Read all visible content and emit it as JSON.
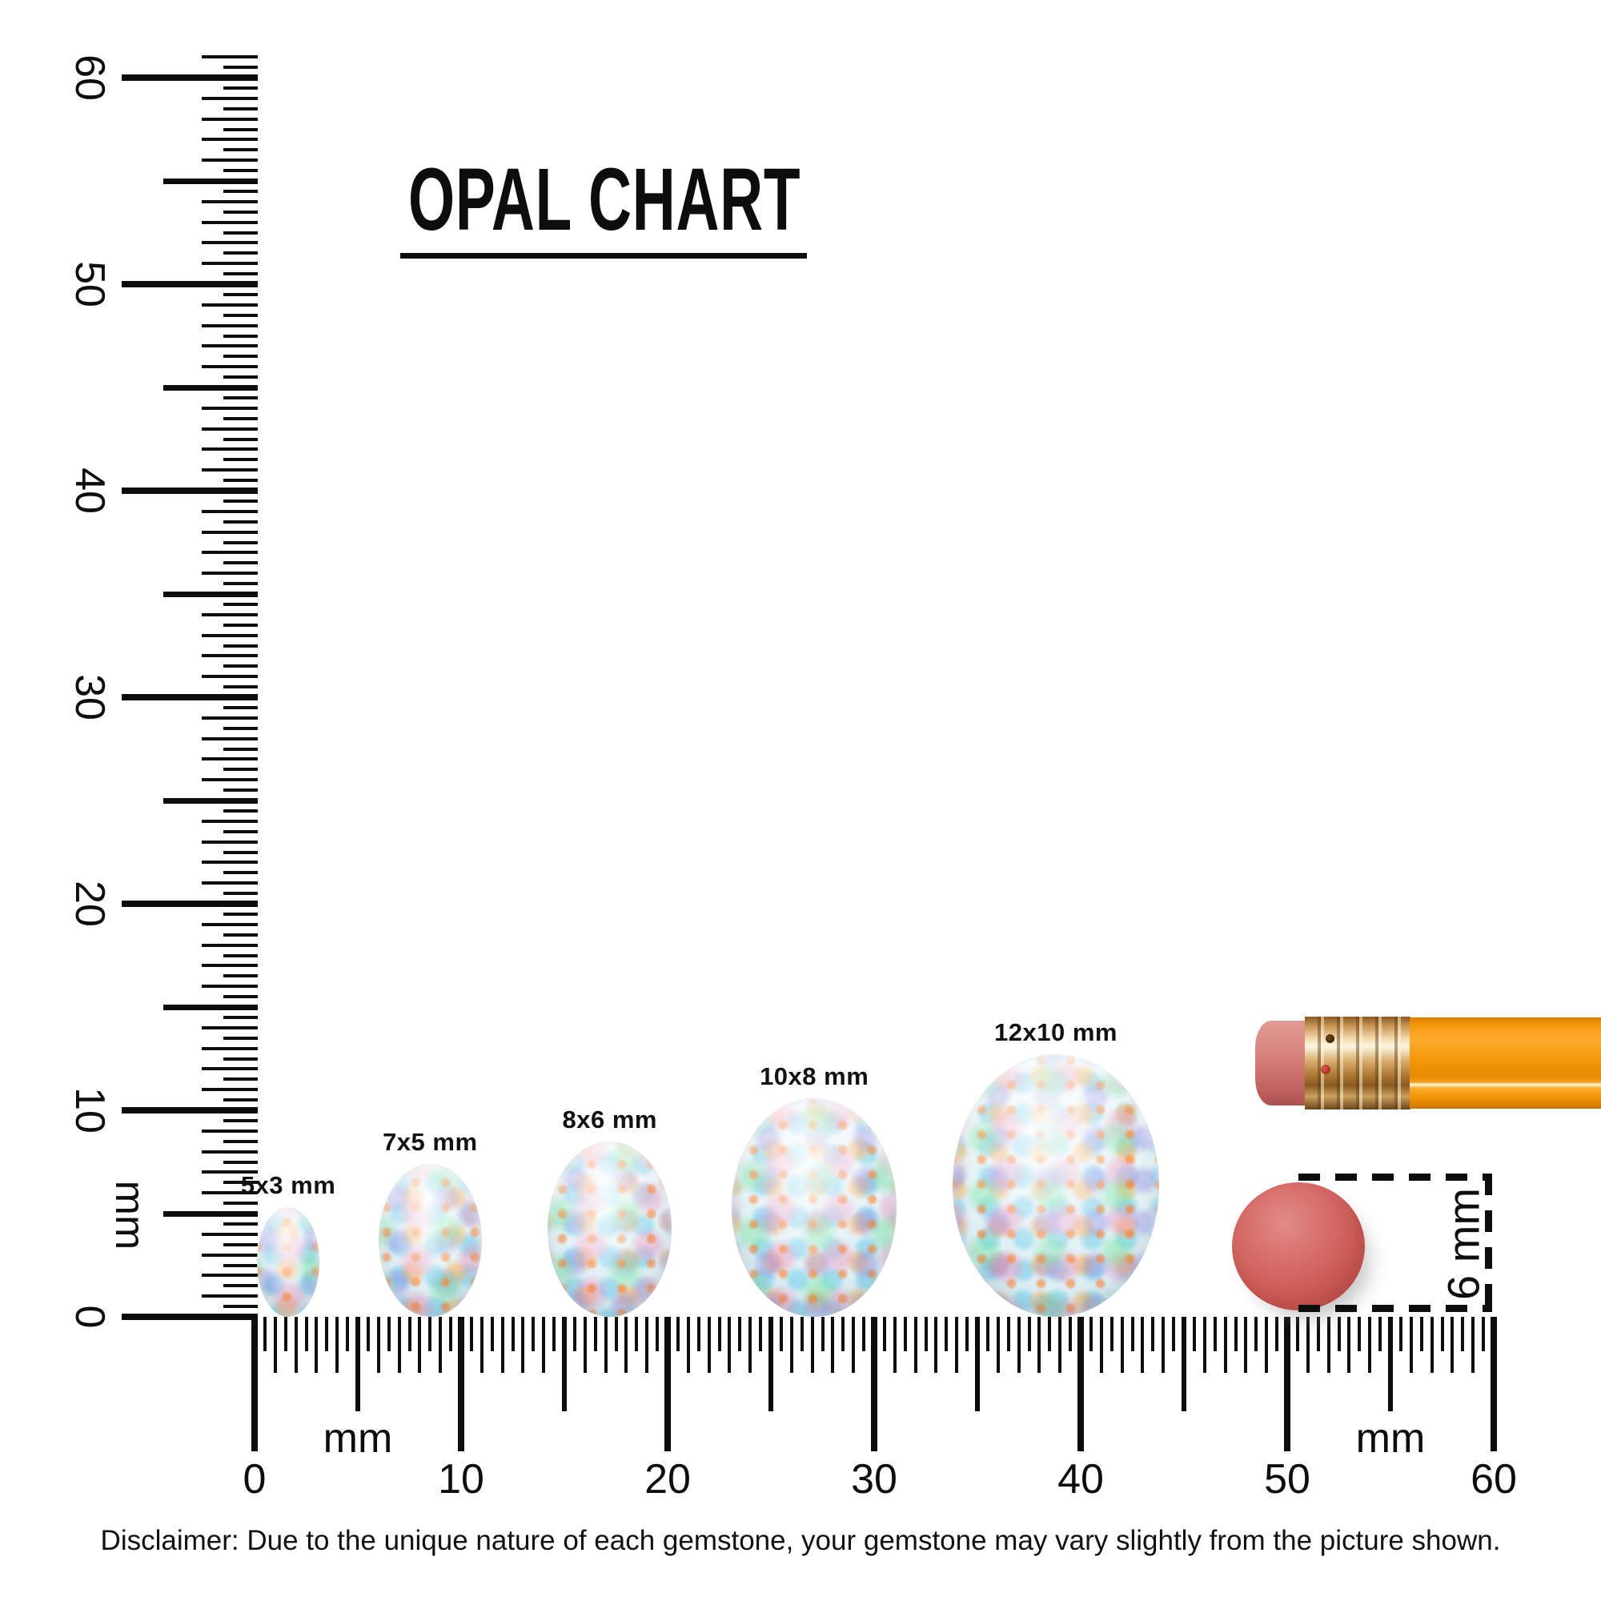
{
  "title": "OPAL CHART",
  "rulers": {
    "unit_label": "mm",
    "vertical": {
      "min_mm": 0,
      "max_mm": 61,
      "major_labels": [
        "0",
        "10",
        "20",
        "30",
        "40",
        "50",
        "60"
      ]
    },
    "horizontal": {
      "min_mm": 0,
      "max_mm": 60,
      "major_labels": [
        "0",
        "10",
        "20",
        "30",
        "40",
        "50",
        "60"
      ]
    }
  },
  "opals": [
    {
      "label": "5x3 mm",
      "width_mm": 3,
      "height_mm": 5,
      "center_mm": 1.63
    },
    {
      "label": "7x5 mm",
      "width_mm": 5,
      "height_mm": 7,
      "center_mm": 8.5
    },
    {
      "label": "8x6 mm",
      "width_mm": 6,
      "height_mm": 8,
      "center_mm": 17.2
    },
    {
      "label": "10x8 mm",
      "width_mm": 8,
      "height_mm": 10,
      "center_mm": 27.1
    },
    {
      "label": "12x10 mm",
      "width_mm": 10,
      "height_mm": 12,
      "center_mm": 38.8
    }
  ],
  "comparison": {
    "eraser_dot_label": "6 mm"
  },
  "disclaimer": "Disclaimer: Due to the unique nature of each gemstone, your gemstone may vary slightly from the picture shown.",
  "colors": {
    "ink": "#0d0d0d",
    "pencil_body": "#f59d13",
    "pencil_eraser": "#d07a76",
    "ferrule_gold": "#d9aa5e",
    "eraser_dot": "#c9605c",
    "opal_base": "#e6f1f5"
  },
  "chart_data": {
    "type": "table",
    "title": "OPAL CHART",
    "columns": [
      "size_label",
      "width_mm",
      "height_mm",
      "center_position_mm_on_ruler"
    ],
    "rows": [
      [
        "5x3 mm",
        3,
        5,
        1.63
      ],
      [
        "7x5 mm",
        5,
        7,
        8.5
      ],
      [
        "8x6 mm",
        6,
        8,
        17.2
      ],
      [
        "10x8 mm",
        8,
        10,
        27.1
      ],
      [
        "12x10 mm",
        10,
        12,
        38.8
      ]
    ],
    "axes": {
      "horizontal_ruler_range_mm": [
        0,
        60
      ],
      "vertical_ruler_range_mm": [
        0,
        61
      ],
      "minor_tick_step_mm": 0.5,
      "medium_tick_step_mm": 5,
      "major_tick_step_mm": 10,
      "unit": "mm"
    },
    "legend_position": "none",
    "grid": false,
    "reference_objects": [
      {
        "name": "pencil",
        "orientation": "horizontal"
      },
      {
        "name": "eraser-dot",
        "diameter_mm": 6,
        "label": "6 mm"
      }
    ]
  }
}
